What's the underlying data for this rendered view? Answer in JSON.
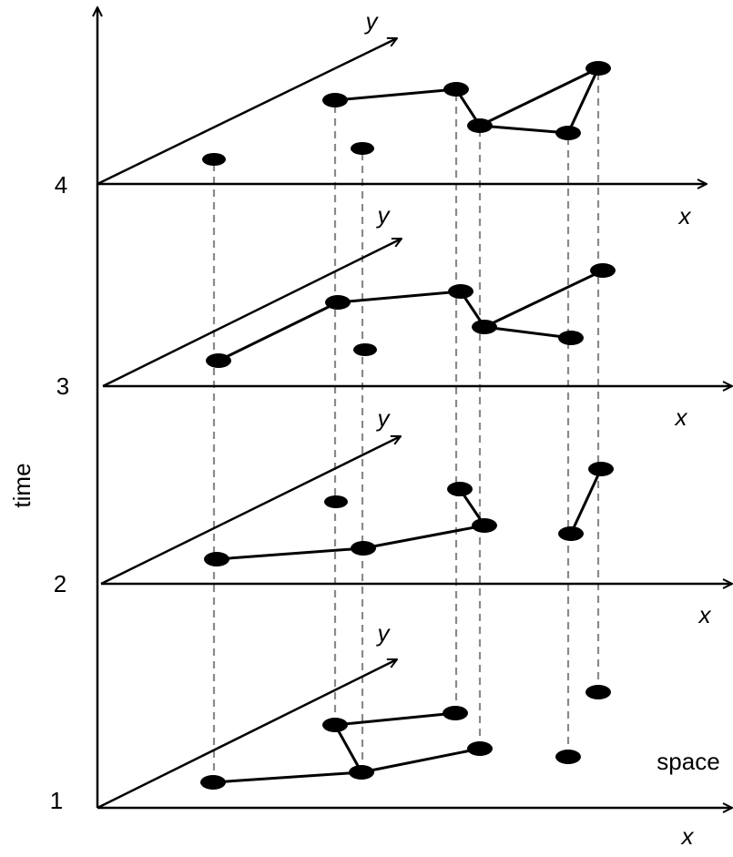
{
  "axis": {
    "time_label": "time",
    "x_label": "x",
    "y_label": "y",
    "space_label": "space"
  },
  "time_steps": [
    "1",
    "2",
    "3",
    "4"
  ],
  "colors": {
    "ink": "#000000",
    "dashed_guide": "#8a8a8a",
    "background": "#ffffff"
  }
}
